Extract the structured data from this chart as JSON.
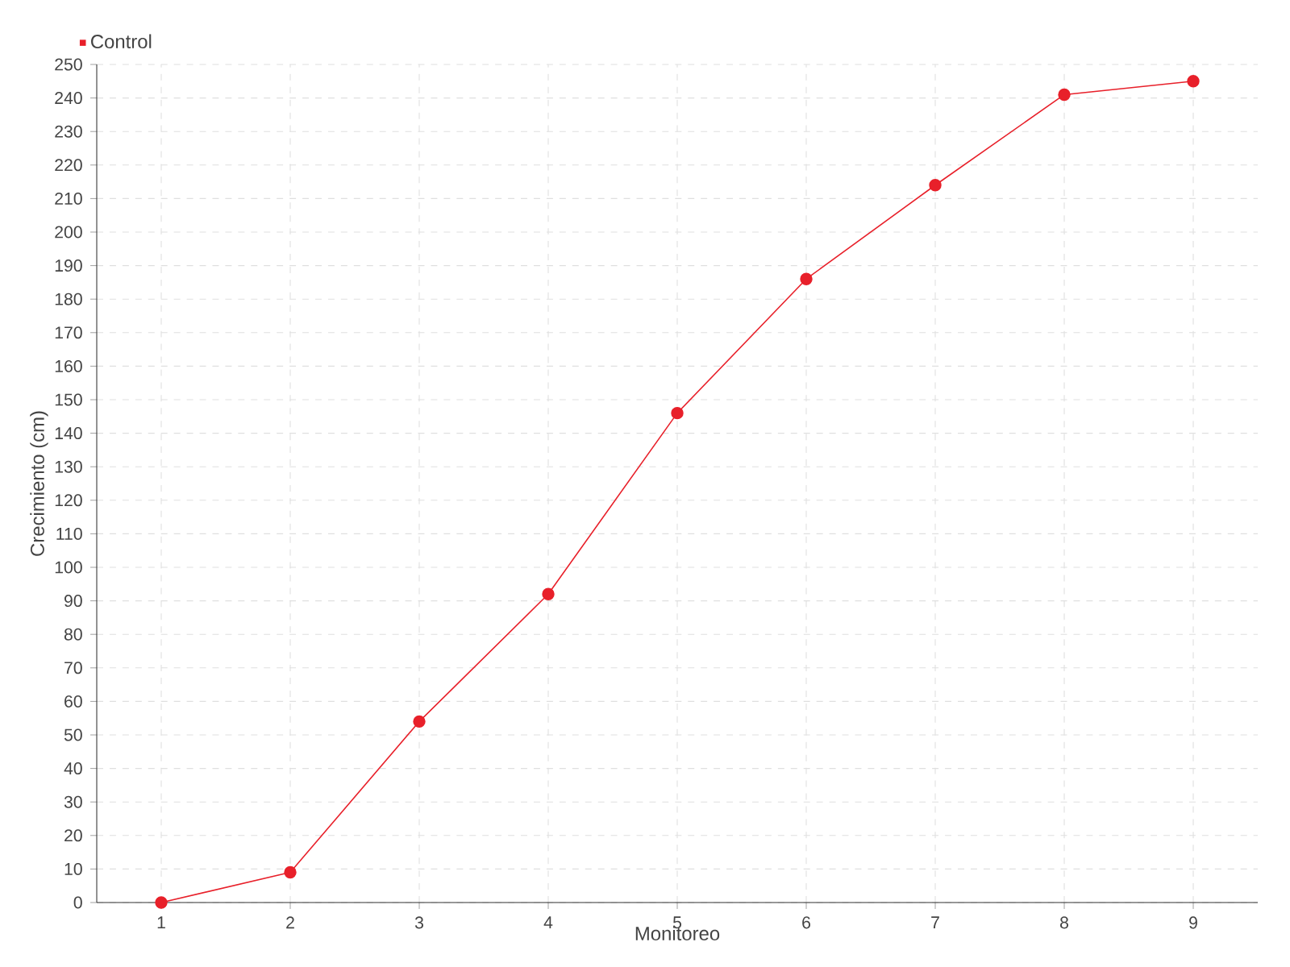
{
  "chart_data": {
    "type": "line",
    "xlabel": "Monitoreo",
    "ylabel": "Crecimiento (cm)",
    "categories": [
      "1",
      "2",
      "3",
      "4",
      "5",
      "6",
      "7",
      "8",
      "9"
    ],
    "series": [
      {
        "name": "Control",
        "color": "#e8202a",
        "values": [
          0,
          9,
          54,
          92,
          146,
          186,
          214,
          241,
          245
        ]
      }
    ],
    "ylim": [
      0,
      250
    ],
    "yticks": [
      0,
      10,
      20,
      30,
      40,
      50,
      60,
      70,
      80,
      90,
      100,
      110,
      120,
      130,
      140,
      150,
      160,
      170,
      180,
      190,
      200,
      210,
      220,
      230,
      240,
      250
    ],
    "grid": true,
    "legend": "top left",
    "marker": "circle",
    "line_style": "solid"
  }
}
